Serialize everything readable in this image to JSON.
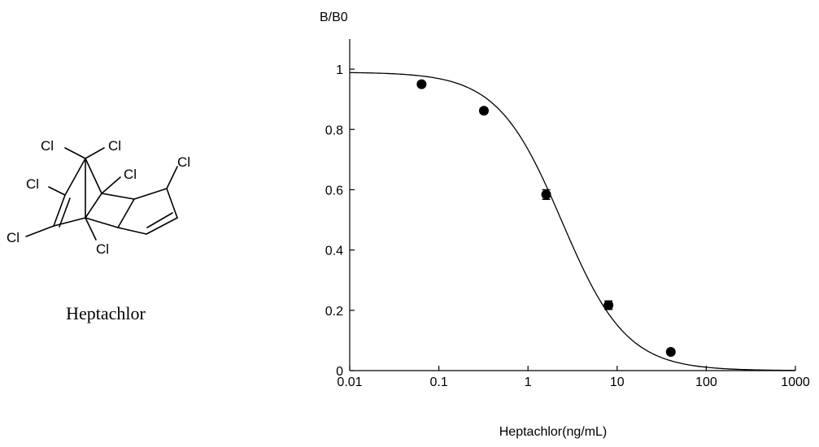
{
  "molecule": {
    "caption": "Heptachlor",
    "atom_label": "Cl"
  },
  "chart_data": {
    "type": "line",
    "ylabel": "B/B0",
    "xlabel": "Heptachlor(ng/mL)",
    "x_scale": "log",
    "xlim": [
      0.01,
      1000
    ],
    "ylim": [
      0,
      1.1
    ],
    "x_ticks": [
      {
        "value": 0.01,
        "label": "0.01"
      },
      {
        "value": 0.1,
        "label": "0.1"
      },
      {
        "value": 1,
        "label": "1"
      },
      {
        "value": 10,
        "label": "10"
      },
      {
        "value": 100,
        "label": "100"
      },
      {
        "value": 1000,
        "label": "1000"
      }
    ],
    "y_ticks": [
      {
        "value": 0,
        "label": "0"
      },
      {
        "value": 0.2,
        "label": "0.2"
      },
      {
        "value": 0.4,
        "label": "0.4"
      },
      {
        "value": 0.6,
        "label": "0.6"
      },
      {
        "value": 0.8,
        "label": "0.8"
      },
      {
        "value": 1,
        "label": "1"
      }
    ],
    "points": [
      {
        "x": 0.064,
        "y": 0.95,
        "err": 0.008
      },
      {
        "x": 0.32,
        "y": 0.862,
        "err": 0.008
      },
      {
        "x": 1.6,
        "y": 0.584,
        "err": 0.016
      },
      {
        "x": 8,
        "y": 0.217,
        "err": 0.014
      },
      {
        "x": 40,
        "y": 0.062,
        "err": 0.006
      }
    ],
    "fit_curve": {
      "model": "four-parameter logistic",
      "top": 0.99,
      "bottom": 0.0,
      "ic50": 2.4,
      "hill": 1.2
    },
    "grid": false,
    "legend": "none"
  }
}
